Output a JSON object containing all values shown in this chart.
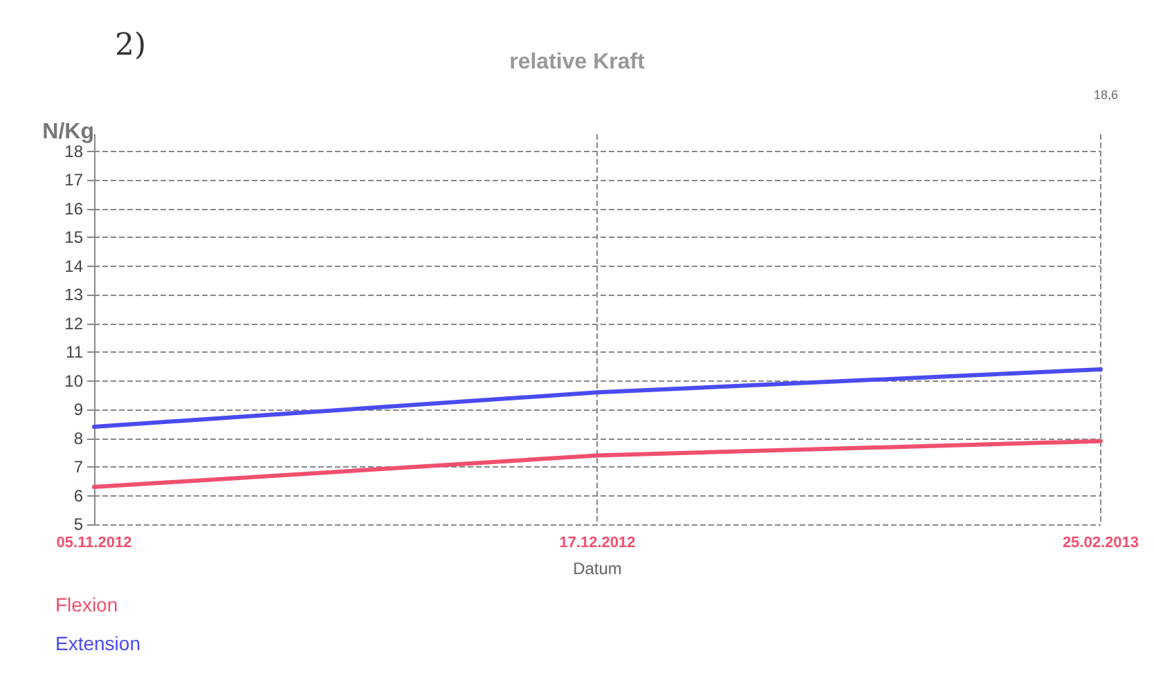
{
  "chart_data": {
    "type": "line",
    "title": "relative Kraft",
    "xlabel": "Datum",
    "ylabel": "N/Kg",
    "annotations": [
      "2)",
      "18,6"
    ],
    "categories": [
      "05.11.2012",
      "17.12.2012",
      "25.02.2013"
    ],
    "series": [
      {
        "name": "Flexion",
        "color": "#f0506e",
        "values": [
          6.3,
          7.4,
          7.9
        ]
      },
      {
        "name": "Extension",
        "color": "#4b4bf0",
        "values": [
          8.4,
          9.6,
          10.4
        ]
      }
    ],
    "ylim": [
      5,
      18.6
    ],
    "yticks": [
      5,
      6,
      7,
      8,
      9,
      10,
      11,
      12,
      13,
      14,
      15,
      16,
      17,
      18
    ],
    "grid": true,
    "legend": "bottom left",
    "marker": "none",
    "line_style": "solid"
  }
}
